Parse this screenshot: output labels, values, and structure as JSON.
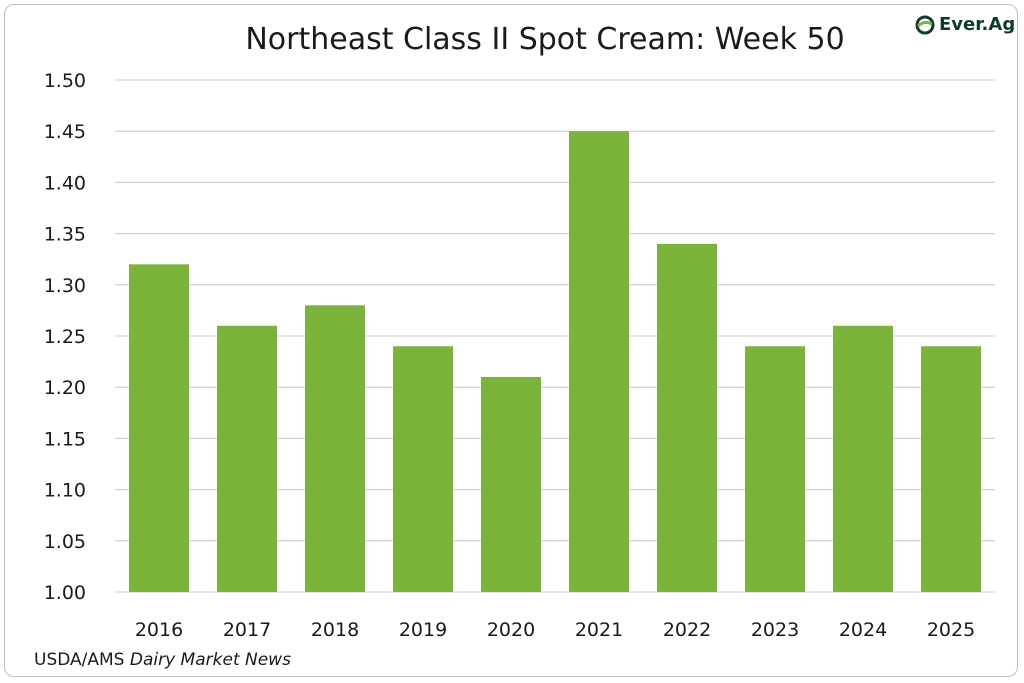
{
  "chart_data": {
    "type": "bar",
    "title": "Northeast Class II Spot Cream: Week 50",
    "categories": [
      "2016",
      "2017",
      "2018",
      "2019",
      "2020",
      "2021",
      "2022",
      "2023",
      "2024",
      "2025"
    ],
    "values": [
      1.32,
      1.26,
      1.28,
      1.24,
      1.21,
      1.45,
      1.34,
      1.24,
      1.26,
      1.24
    ],
    "ylim": [
      1.0,
      1.5
    ],
    "yticks": [
      "1.00",
      "1.05",
      "1.10",
      "1.15",
      "1.20",
      "1.25",
      "1.30",
      "1.35",
      "1.40",
      "1.45",
      "1.50"
    ],
    "grid": true,
    "bar_color": "#7ab33a",
    "grid_color": "#c8c8c8"
  },
  "source": {
    "prefix": "USDA/AMS ",
    "italic": "Dairy Market News"
  },
  "logo": {
    "text": "Ever.Ag",
    "color": "#0d3b2e",
    "icon": "leaf-e-icon"
  }
}
